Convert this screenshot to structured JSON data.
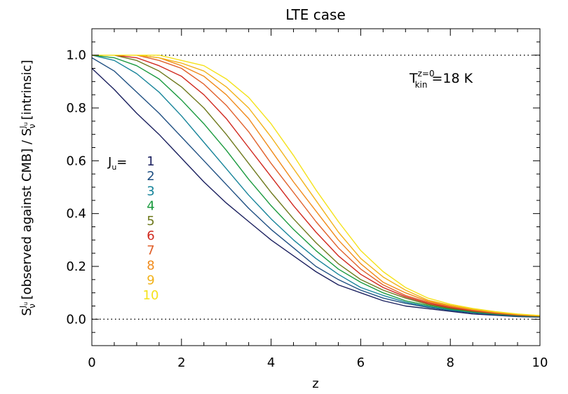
{
  "chart_data": {
    "type": "line",
    "title": "LTE case",
    "xlabel": "z",
    "ylabel_main": "S",
    "ylabel_sup": "J",
    "ylabel_sup_sub": "u",
    "ylabel_sub": "ν",
    "ylabel_mid": " [observed against CMB] / ",
    "ylabel_end": " [intrinsic]",
    "xlim": [
      0,
      10
    ],
    "ylim": [
      -0.1,
      1.1
    ],
    "xticks": [
      "0",
      "2",
      "4",
      "6",
      "8",
      "10"
    ],
    "yticks": [
      "0.0",
      "0.2",
      "0.4",
      "0.6",
      "0.8",
      "1.0"
    ],
    "reference_lines": [
      1.0,
      0.0
    ],
    "annotation": {
      "T": "T",
      "sub": "kin",
      "sup": "z=0",
      "text": "=18  K"
    },
    "legend_title": {
      "J": "J",
      "sub": "u",
      "eq": "="
    },
    "x": [
      0,
      0.5,
      1,
      1.5,
      2,
      2.5,
      3,
      3.5,
      4,
      4.5,
      5,
      5.5,
      6,
      6.5,
      7,
      7.5,
      8,
      8.5,
      9,
      9.5,
      10
    ],
    "series": [
      {
        "name": "1",
        "color": "#1a1f5e",
        "values": [
          0.95,
          0.87,
          0.78,
          0.7,
          0.61,
          0.52,
          0.44,
          0.37,
          0.3,
          0.24,
          0.18,
          0.13,
          0.1,
          0.07,
          0.05,
          0.04,
          0.03,
          0.02,
          0.015,
          0.01,
          0.008
        ]
      },
      {
        "name": "2",
        "color": "#1f4f82",
        "values": [
          0.99,
          0.94,
          0.86,
          0.78,
          0.69,
          0.6,
          0.51,
          0.42,
          0.34,
          0.27,
          0.2,
          0.15,
          0.11,
          0.08,
          0.06,
          0.045,
          0.033,
          0.024,
          0.017,
          0.012,
          0.009
        ]
      },
      {
        "name": "3",
        "color": "#17849a",
        "values": [
          1.0,
          0.98,
          0.93,
          0.86,
          0.77,
          0.67,
          0.57,
          0.47,
          0.38,
          0.3,
          0.23,
          0.17,
          0.12,
          0.09,
          0.065,
          0.048,
          0.035,
          0.026,
          0.019,
          0.013,
          0.01
        ]
      },
      {
        "name": "4",
        "color": "#1a9a3e",
        "values": [
          1.0,
          0.99,
          0.96,
          0.91,
          0.83,
          0.74,
          0.64,
          0.53,
          0.43,
          0.34,
          0.26,
          0.19,
          0.14,
          0.1,
          0.07,
          0.052,
          0.038,
          0.028,
          0.02,
          0.014,
          0.01
        ]
      },
      {
        "name": "5",
        "color": "#6f7a1e",
        "values": [
          1.0,
          1.0,
          0.98,
          0.94,
          0.88,
          0.8,
          0.7,
          0.59,
          0.48,
          0.38,
          0.29,
          0.21,
          0.15,
          0.11,
          0.08,
          0.056,
          0.041,
          0.03,
          0.021,
          0.015,
          0.011
        ]
      },
      {
        "name": "6",
        "color": "#d0281e",
        "values": [
          1.0,
          1.0,
          0.99,
          0.96,
          0.92,
          0.85,
          0.76,
          0.65,
          0.54,
          0.43,
          0.33,
          0.24,
          0.17,
          0.12,
          0.085,
          0.06,
          0.044,
          0.032,
          0.023,
          0.016,
          0.012
        ]
      },
      {
        "name": "7",
        "color": "#e0602a",
        "values": [
          1.0,
          1.0,
          1.0,
          0.98,
          0.95,
          0.89,
          0.81,
          0.71,
          0.59,
          0.48,
          0.37,
          0.27,
          0.19,
          0.13,
          0.09,
          0.064,
          0.047,
          0.034,
          0.024,
          0.017,
          0.012
        ]
      },
      {
        "name": "8",
        "color": "#f08a1a",
        "values": [
          1.0,
          1.0,
          1.0,
          0.99,
          0.96,
          0.92,
          0.85,
          0.76,
          0.64,
          0.52,
          0.41,
          0.3,
          0.21,
          0.14,
          0.1,
          0.068,
          0.05,
          0.036,
          0.026,
          0.018,
          0.013
        ]
      },
      {
        "name": "9",
        "color": "#f2b21a",
        "values": [
          1.0,
          1.0,
          1.0,
          0.99,
          0.97,
          0.94,
          0.88,
          0.8,
          0.69,
          0.57,
          0.45,
          0.33,
          0.23,
          0.16,
          0.11,
          0.072,
          0.053,
          0.038,
          0.027,
          0.019,
          0.014
        ]
      },
      {
        "name": "10",
        "color": "#f5e21a",
        "values": [
          1.0,
          1.0,
          1.0,
          1.0,
          0.98,
          0.96,
          0.91,
          0.84,
          0.74,
          0.62,
          0.49,
          0.37,
          0.26,
          0.18,
          0.12,
          0.08,
          0.057,
          0.041,
          0.029,
          0.02,
          0.014
        ]
      }
    ]
  }
}
